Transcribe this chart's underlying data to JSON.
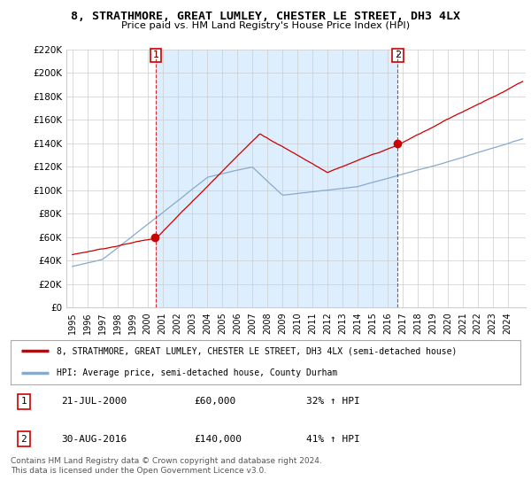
{
  "title": "8, STRATHMORE, GREAT LUMLEY, CHESTER LE STREET, DH3 4LX",
  "subtitle": "Price paid vs. HM Land Registry's House Price Index (HPI)",
  "legend_line1": "8, STRATHMORE, GREAT LUMLEY, CHESTER LE STREET, DH3 4LX (semi-detached house)",
  "legend_line2": "HPI: Average price, semi-detached house, County Durham",
  "footer": "Contains HM Land Registry data © Crown copyright and database right 2024.\nThis data is licensed under the Open Government Licence v3.0.",
  "sale1_label": "1",
  "sale1_date": "21-JUL-2000",
  "sale1_price": "£60,000",
  "sale1_hpi": "32% ↑ HPI",
  "sale2_label": "2",
  "sale2_date": "30-AUG-2016",
  "sale2_price": "£140,000",
  "sale2_hpi": "41% ↑ HPI",
  "ylim": [
    0,
    220000
  ],
  "yticks": [
    0,
    20000,
    40000,
    60000,
    80000,
    100000,
    120000,
    140000,
    160000,
    180000,
    200000,
    220000
  ],
  "ytick_labels": [
    "£0",
    "£20K",
    "£40K",
    "£60K",
    "£80K",
    "£100K",
    "£120K",
    "£140K",
    "£160K",
    "£180K",
    "£200K",
    "£220K"
  ],
  "red_color": "#cc0000",
  "blue_color": "#88aacc",
  "shade_color": "#ddeeff",
  "sale1_x": 2000.55,
  "sale2_x": 2016.67,
  "sale1_y": 60000,
  "sale2_y": 140000,
  "background_color": "#ffffff",
  "grid_color": "#cccccc",
  "xmin": 1995,
  "xmax": 2024.5
}
